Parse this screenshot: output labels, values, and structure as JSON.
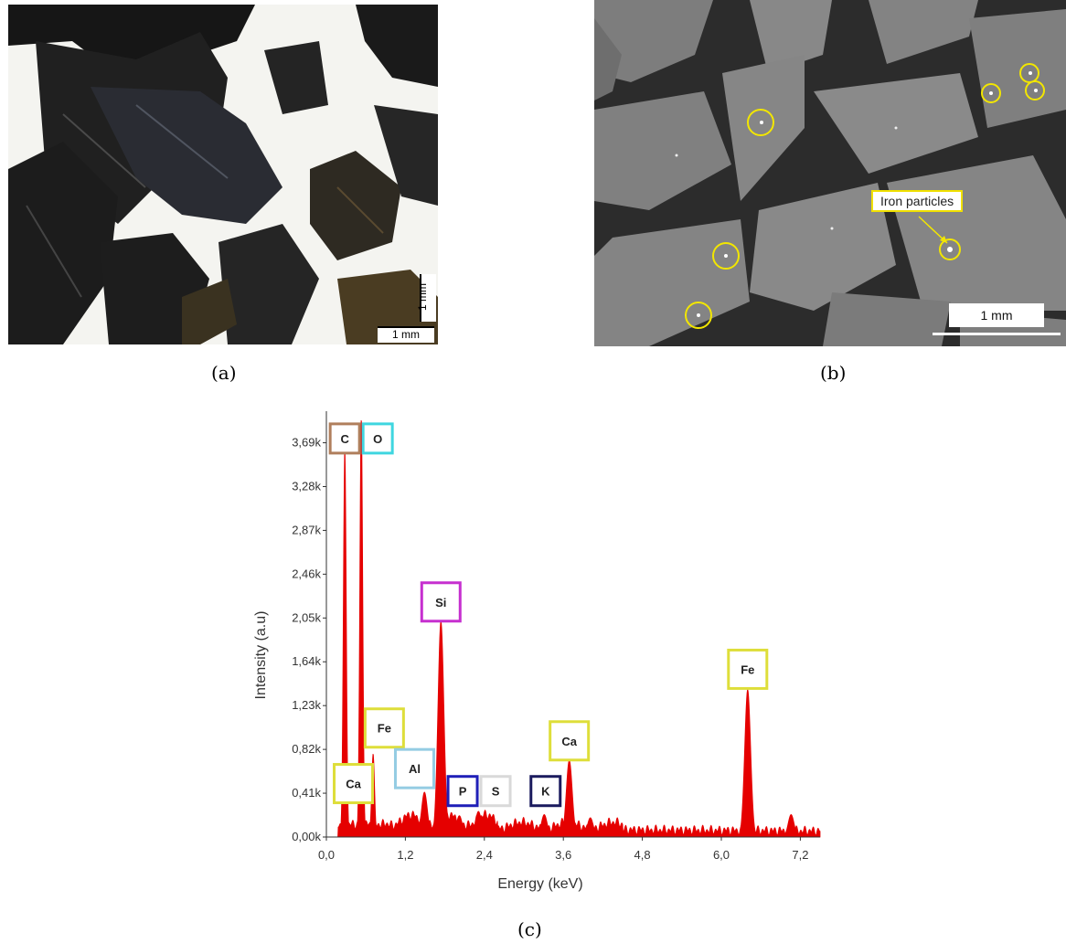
{
  "panels": {
    "a": {
      "caption": "(a)",
      "scale_h": "1 mm",
      "scale_v": "1 mm"
    },
    "b": {
      "caption": "(b)",
      "scale": "1 mm",
      "callout": "Iron particles",
      "highlight_color": "#f2e600"
    },
    "c": {
      "caption": "(c)"
    }
  },
  "chart_data": {
    "type": "area",
    "xlabel": "Energy (keV)",
    "ylabel": "Intensity (a.u)",
    "xlim": [
      0,
      7.5
    ],
    "ylim": [
      0,
      3.9
    ],
    "x_ticks": [
      "0,0",
      "1,2",
      "2,4",
      "3,6",
      "4,8",
      "6,0",
      "7,2"
    ],
    "x_tick_values": [
      0,
      1.2,
      2.4,
      3.6,
      4.8,
      6.0,
      7.2
    ],
    "y_ticks": [
      "0,00k",
      "0,41k",
      "0,82k",
      "1,23k",
      "1,64k",
      "2,05k",
      "2,46k",
      "2,87k",
      "3,28k",
      "3,69k"
    ],
    "y_tick_values": [
      0,
      0.41,
      0.82,
      1.23,
      1.64,
      2.05,
      2.46,
      2.87,
      3.28,
      3.69
    ],
    "series_color": "#e50000",
    "peaks": [
      {
        "x": 0.28,
        "y": 3.65
      },
      {
        "x": 0.53,
        "y": 3.95
      },
      {
        "x": 0.71,
        "y": 0.78
      },
      {
        "x": 1.49,
        "y": 0.42
      },
      {
        "x": 1.74,
        "y": 2.02
      },
      {
        "x": 2.02,
        "y": 0.2
      },
      {
        "x": 2.31,
        "y": 0.24
      },
      {
        "x": 3.31,
        "y": 0.21
      },
      {
        "x": 3.69,
        "y": 0.72
      },
      {
        "x": 4.01,
        "y": 0.18
      },
      {
        "x": 6.4,
        "y": 1.38
      },
      {
        "x": 7.06,
        "y": 0.21
      }
    ],
    "element_labels": [
      {
        "text": "C",
        "color": "#b07f5c",
        "x": 0.28,
        "y": 3.73
      },
      {
        "text": "O",
        "color": "#3fd6e0",
        "x": 0.78,
        "y": 3.73
      },
      {
        "text": "Si",
        "color": "#c62fcf",
        "x": 1.74,
        "y": 2.2
      },
      {
        "text": "Fe",
        "color": "#dede3a",
        "x": 0.88,
        "y": 1.02
      },
      {
        "text": "Ca",
        "color": "#dede3a",
        "x": 0.41,
        "y": 0.5
      },
      {
        "text": "Al",
        "color": "#94cce3",
        "x": 1.34,
        "y": 0.64
      },
      {
        "text": "P",
        "color": "#1f1fb8",
        "x": 2.07,
        "y": 0.43
      },
      {
        "text": "S",
        "color": "#d9d9d9",
        "x": 2.57,
        "y": 0.43
      },
      {
        "text": "K",
        "color": "#1b1b5e",
        "x": 3.33,
        "y": 0.43
      },
      {
        "text": "Ca",
        "color": "#dede3a",
        "x": 3.69,
        "y": 0.9
      },
      {
        "text": "Fe",
        "color": "#dede3a",
        "x": 6.4,
        "y": 1.57
      }
    ]
  }
}
